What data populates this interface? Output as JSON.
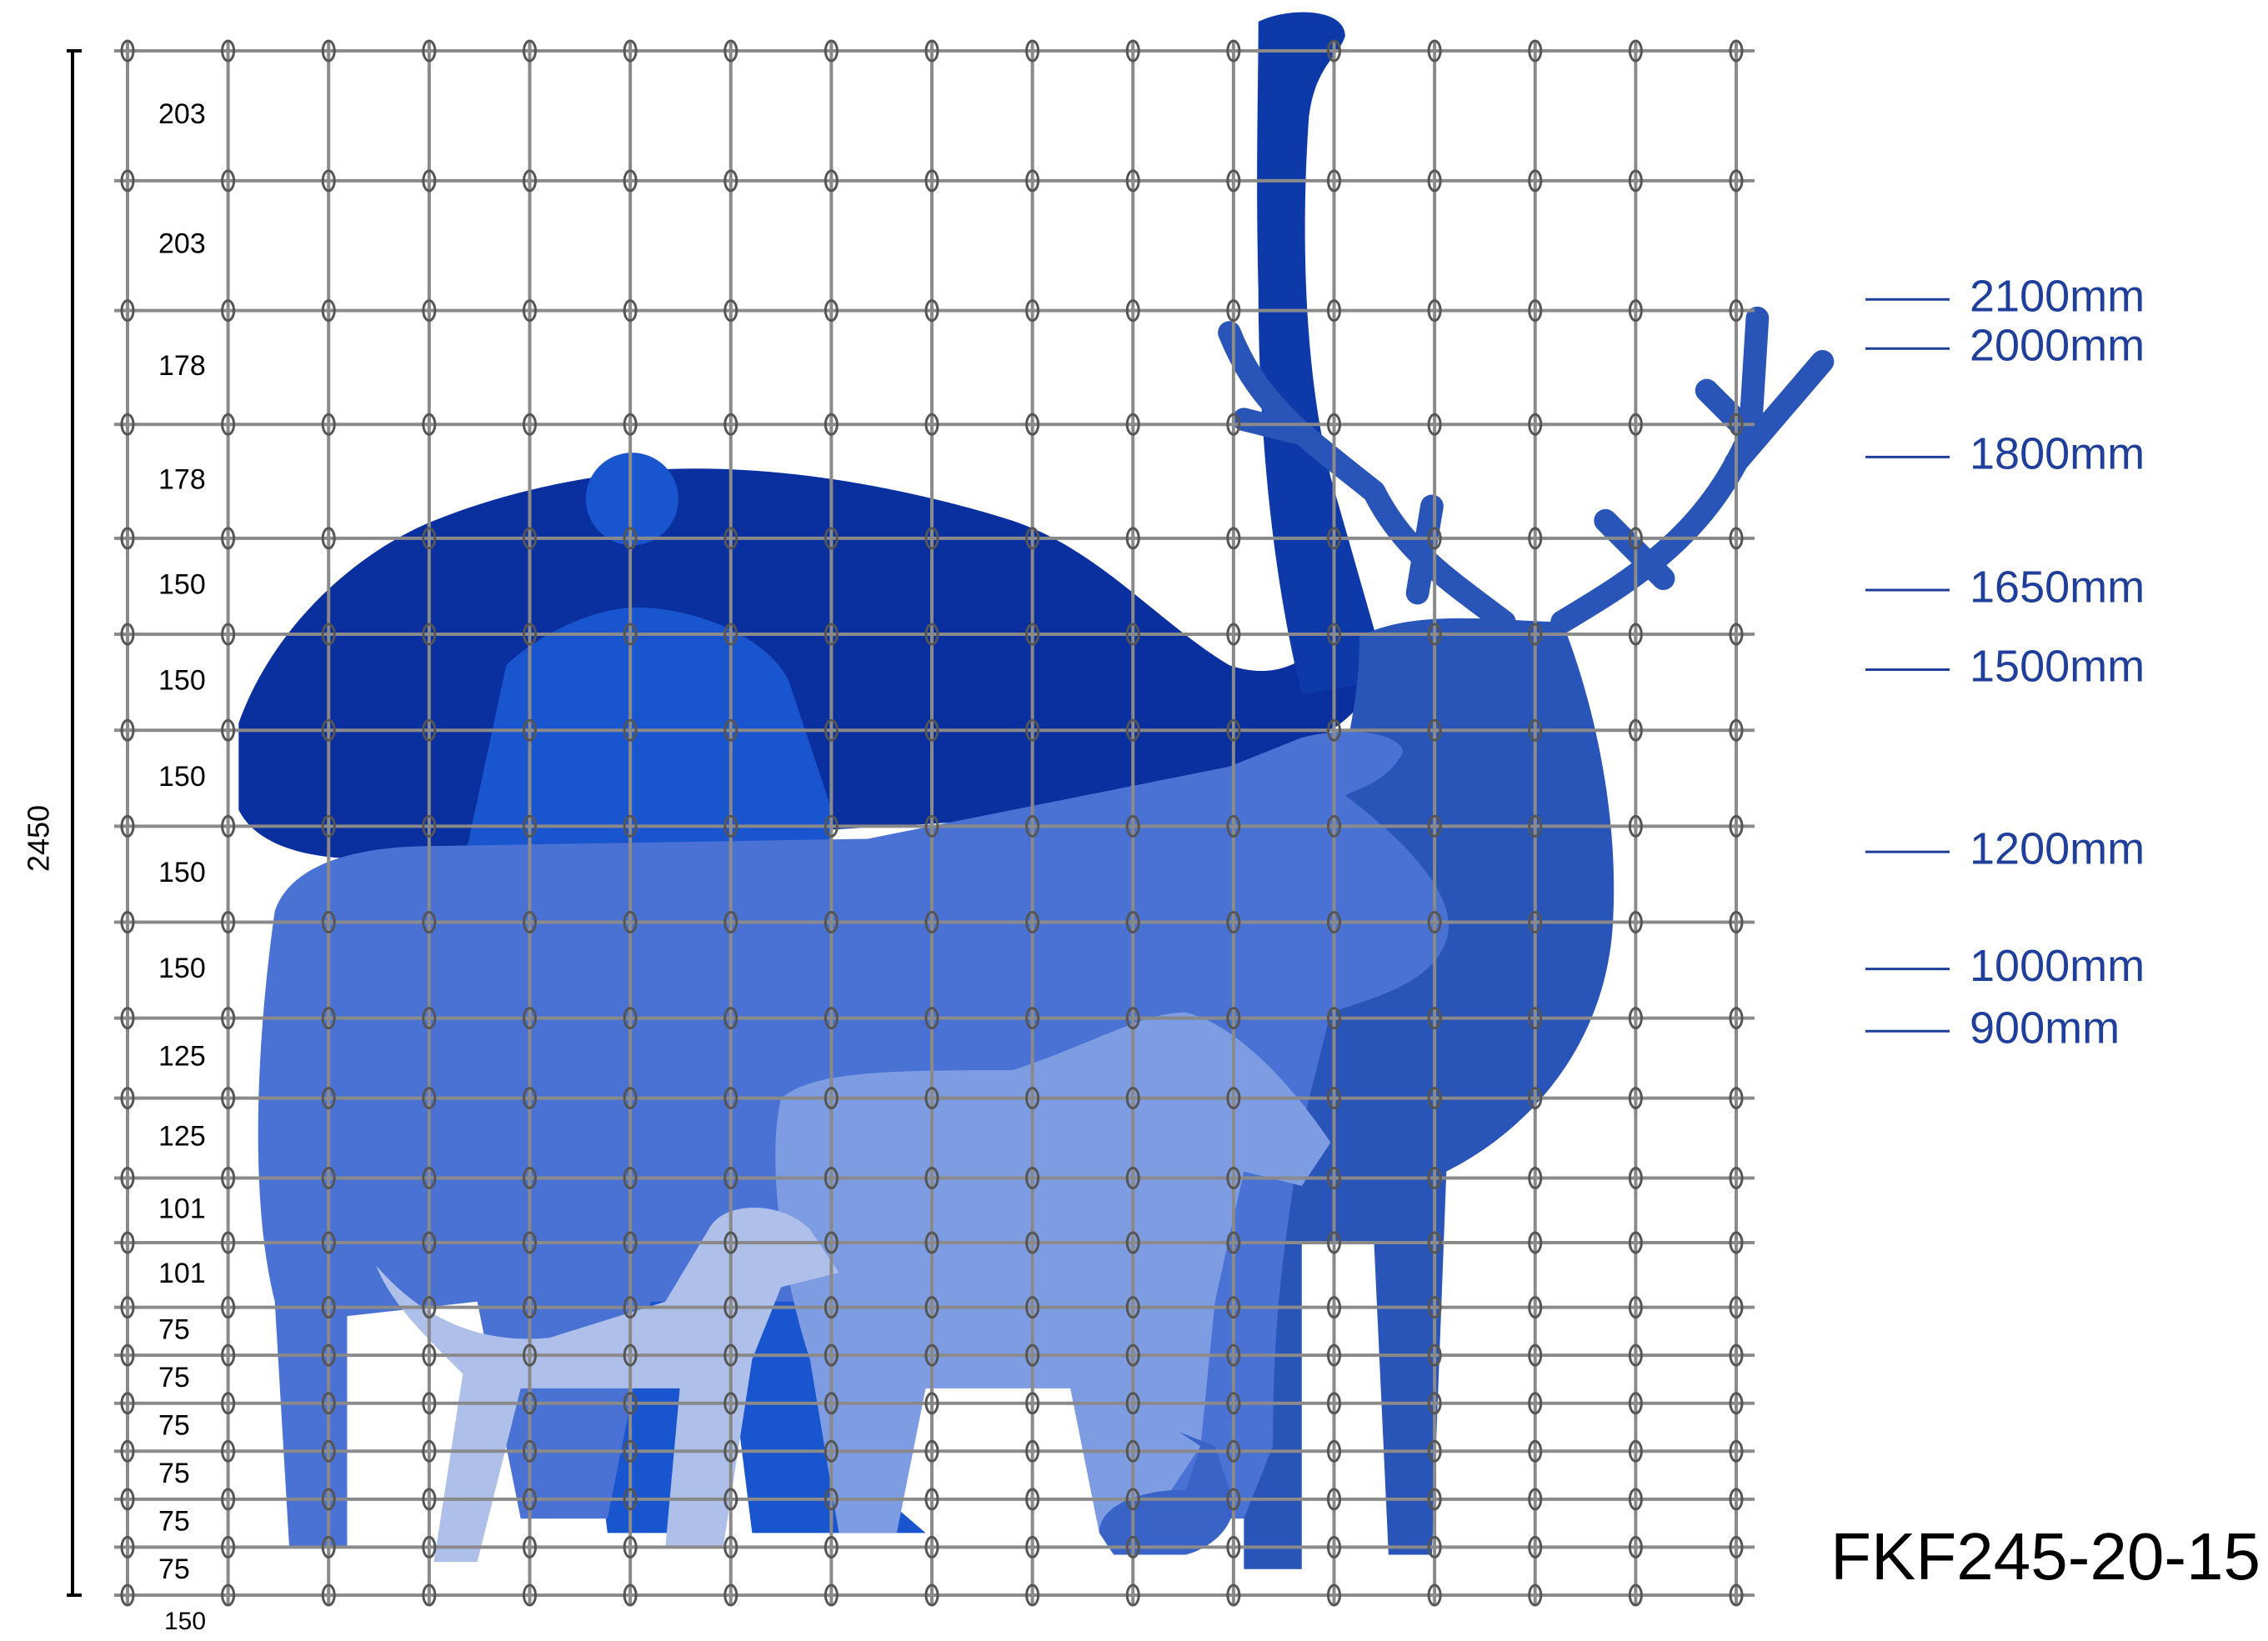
{
  "dimension_label": 2450,
  "spacings": [
    203,
    203,
    178,
    178,
    150,
    150,
    150,
    150,
    150,
    125,
    125,
    101,
    101,
    75,
    75,
    75,
    75,
    75,
    75
  ],
  "bottom_spacing": 150,
  "height_markers": [
    "2100mm",
    "2000mm",
    "1800mm",
    "1650mm",
    "1500mm",
    "1200mm",
    "1000mm",
    "900mm"
  ],
  "model": "FKF245-20-15"
}
